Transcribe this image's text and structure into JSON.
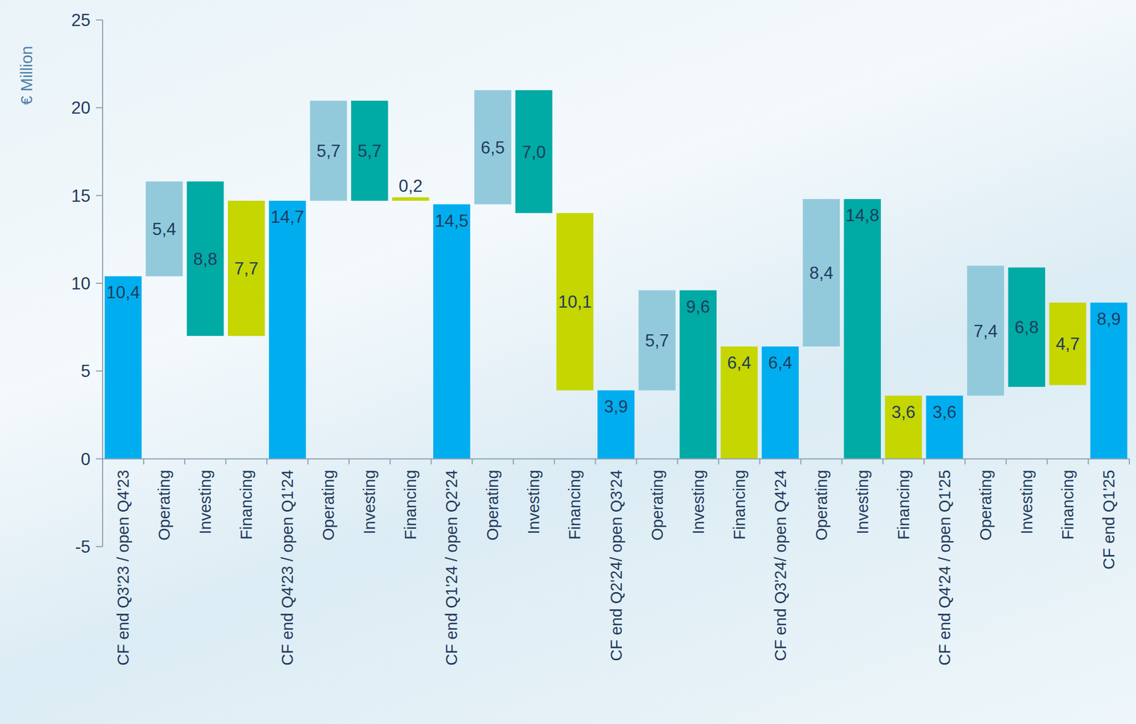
{
  "chart_data": {
    "type": "bar",
    "y_label": "€ Million",
    "categories": [
      "CF end Q3'23 / open Q4'23",
      "Operating",
      "Investing",
      "Financing",
      "CF end Q4'23 / open Q1'24",
      "Operating",
      "Investing",
      "Financing",
      "CF end Q1'24 / open Q2'24",
      "Operating",
      "Investing",
      "Financing",
      "CF end Q2'24/ open Q3'24",
      "Operating",
      "Investing",
      "Financing",
      "CF end Q3'24/ open Q4'24",
      "Operating",
      "Investing",
      "Financing",
      "CF end Q4'24 / open Q1'25",
      "Operating",
      "Investing",
      "Financing",
      "CF end Q1'25"
    ],
    "values": [
      10.4,
      5.4,
      8.8,
      7.7,
      14.7,
      5.7,
      5.7,
      0.2,
      14.5,
      6.5,
      7.0,
      10.1,
      3.9,
      5.7,
      9.6,
      6.4,
      6.4,
      8.4,
      14.8,
      3.6,
      3.6,
      7.4,
      6.8,
      4.7,
      8.9
    ],
    "bottoms": [
      0,
      10.4,
      7.0,
      7.0,
      0,
      14.7,
      14.7,
      14.7,
      0,
      14.5,
      14.0,
      3.9,
      0,
      3.9,
      0,
      0,
      0,
      6.4,
      0,
      0,
      0,
      3.6,
      4.1,
      4.2,
      0
    ],
    "value_labels": [
      "10,4",
      "5,4",
      "8,8",
      "7,7",
      "14,7",
      "5,7",
      "5,7",
      "0,2",
      "14,5",
      "6,5",
      "7,0",
      "10,1",
      "3,9",
      "5,7",
      "9,6",
      "6,4",
      "6,4",
      "8,4",
      "14,8",
      "3,6",
      "3,6",
      "7,4",
      "6,8",
      "4,7",
      "8,9"
    ],
    "colors": [
      "#00aeef",
      "#92cadc",
      "#00aaa5",
      "#c5d600",
      "#00aeef",
      "#92cadc",
      "#00aaa5",
      "#c5d600",
      "#00aeef",
      "#92cadc",
      "#00aaa5",
      "#c5d600",
      "#00aeef",
      "#92cadc",
      "#00aaa5",
      "#c5d600",
      "#00aeef",
      "#92cadc",
      "#00aaa5",
      "#c5d600",
      "#00aeef",
      "#92cadc",
      "#00aaa5",
      "#c5d600",
      "#00aeef"
    ],
    "ylim": [
      -5,
      25
    ],
    "yticks": [
      -5,
      0,
      5,
      10,
      15,
      20,
      25
    ],
    "data_labels": true,
    "grid": false
  }
}
